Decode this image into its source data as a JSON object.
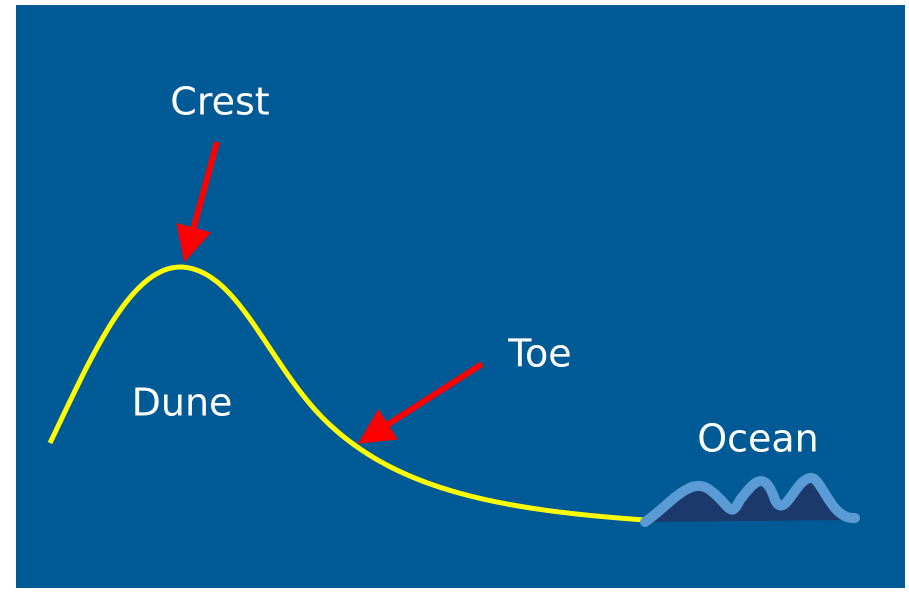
{
  "labels": {
    "crest": "Crest",
    "toe": "Toe",
    "dune": "Dune",
    "ocean": "Ocean"
  }
}
